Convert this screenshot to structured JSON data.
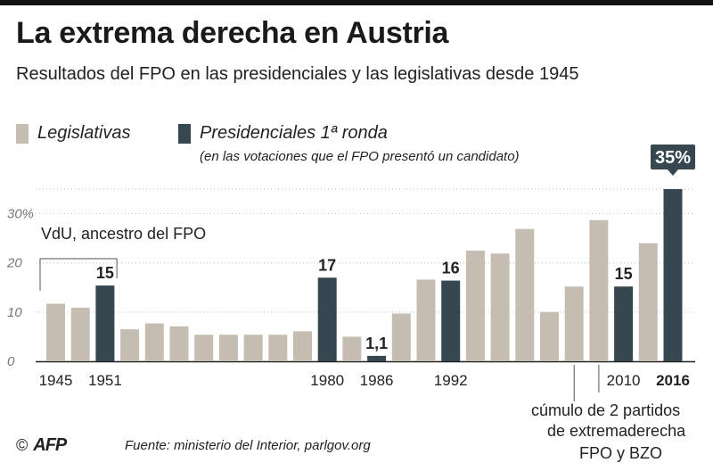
{
  "header": {
    "title": "La extrema derecha en Austria",
    "subtitle": "Resultados del FPO en las presidenciales y las legislativas desde 1945"
  },
  "legend": {
    "legislativas": "Legislativas",
    "presidenciales": "Presidenciales 1ª ronda",
    "note": "(en las votaciones que el FPO presentó un candidato)"
  },
  "colors": {
    "legislativas": "#c5bdb1",
    "presidenciales": "#37474f",
    "grid": "#bbbbbb",
    "text": "#222222",
    "highlight_box": "#37474f"
  },
  "annotations": {
    "vdu": "VdU, ancestro del FPO",
    "cumulo": [
      "cúmulo de 2 partidos",
      "de extremaderecha",
      "FPO y BZO"
    ]
  },
  "footer": {
    "copyright_symbol": "©",
    "logo": "AFP",
    "source": "Fuente: ministerio del Interior, parlgov.org"
  },
  "chart_data": {
    "type": "bar",
    "ylim": [
      0,
      35
    ],
    "yticks": [
      {
        "value": 0,
        "label": "0"
      },
      {
        "value": 10,
        "label": "10"
      },
      {
        "value": 20,
        "label": "20"
      },
      {
        "value": 30,
        "label": "30%"
      }
    ],
    "grid": true,
    "legend_position": "top-left",
    "bars": [
      {
        "type": "legislativas",
        "value": 11.7,
        "xlabel": "1945",
        "label": ""
      },
      {
        "type": "legislativas",
        "value": 10.9,
        "xlabel": "",
        "label": ""
      },
      {
        "type": "presidenciales",
        "value": 15.4,
        "xlabel": "1951",
        "label": "15"
      },
      {
        "type": "legislativas",
        "value": 6.5,
        "xlabel": "",
        "label": ""
      },
      {
        "type": "legislativas",
        "value": 7.7,
        "xlabel": "",
        "label": ""
      },
      {
        "type": "legislativas",
        "value": 7.1,
        "xlabel": "",
        "label": ""
      },
      {
        "type": "legislativas",
        "value": 5.4,
        "xlabel": "",
        "label": ""
      },
      {
        "type": "legislativas",
        "value": 5.4,
        "xlabel": "",
        "label": ""
      },
      {
        "type": "legislativas",
        "value": 5.4,
        "xlabel": "",
        "label": ""
      },
      {
        "type": "legislativas",
        "value": 5.4,
        "xlabel": "",
        "label": ""
      },
      {
        "type": "legislativas",
        "value": 6.1,
        "xlabel": "",
        "label": ""
      },
      {
        "type": "presidenciales",
        "value": 17,
        "xlabel": "1980",
        "label": "17"
      },
      {
        "type": "legislativas",
        "value": 5.0,
        "xlabel": "",
        "label": ""
      },
      {
        "type": "presidenciales",
        "value": 1.1,
        "xlabel": "1986",
        "label": "1,1"
      },
      {
        "type": "legislativas",
        "value": 9.7,
        "xlabel": "",
        "label": ""
      },
      {
        "type": "legislativas",
        "value": 16.6,
        "xlabel": "",
        "label": ""
      },
      {
        "type": "presidenciales",
        "value": 16.4,
        "xlabel": "1992",
        "label": "16"
      },
      {
        "type": "legislativas",
        "value": 22.5,
        "xlabel": "",
        "label": ""
      },
      {
        "type": "legislativas",
        "value": 21.9,
        "xlabel": "",
        "label": ""
      },
      {
        "type": "legislativas",
        "value": 26.9,
        "xlabel": "",
        "label": ""
      },
      {
        "type": "legislativas",
        "value": 10.0,
        "xlabel": "",
        "label": ""
      },
      {
        "type": "legislativas",
        "value": 15.2,
        "xlabel": "",
        "label": ""
      },
      {
        "type": "legislativas",
        "value": 28.7,
        "xlabel": "",
        "label": ""
      },
      {
        "type": "presidenciales",
        "value": 15.2,
        "xlabel": "2010",
        "label": "15"
      },
      {
        "type": "legislativas",
        "value": 24.0,
        "xlabel": "",
        "label": ""
      },
      {
        "type": "presidenciales",
        "value": 35,
        "xlabel": "2016",
        "label": "35%",
        "highlight": true
      }
    ]
  }
}
